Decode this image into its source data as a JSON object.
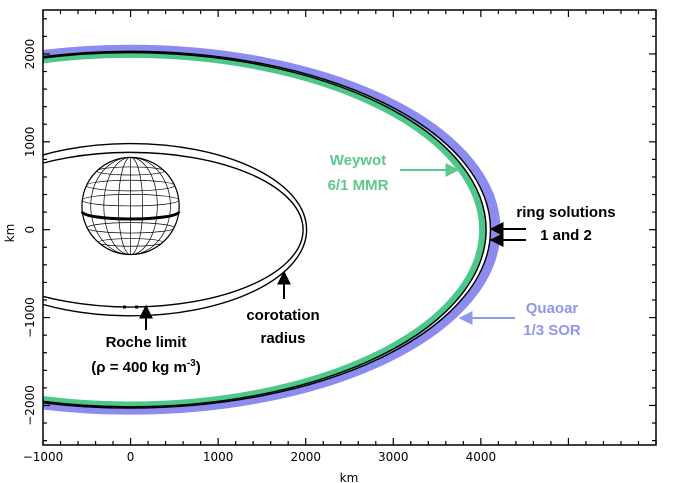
{
  "chart_data": {
    "type": "diagram",
    "xlabel": "km",
    "ylabel": "km",
    "xlim": [
      -1000,
      6000
    ],
    "ylim": [
      -2450,
      2500
    ],
    "x_ticks": [
      -1000,
      0,
      1000,
      2000,
      3000,
      4000
    ],
    "x_tick_labels": [
      "−1000",
      "0",
      "1000",
      "2000",
      "3000",
      "4000"
    ],
    "y_ticks": [
      2000,
      1000,
      0,
      -1000,
      -2000
    ],
    "y_tick_labels": [
      "2000",
      "1000",
      "0",
      "−1000",
      "−2000"
    ],
    "body_radius_km": 555,
    "roche_limit_km": 880,
    "roche_ring": {
      "a_km": 1970,
      "b_km": 880
    },
    "corotation_ring": {
      "a_km": 2010,
      "b_km": 980
    },
    "quaoar_sor": {
      "name": "Quaoar 1/3 SOR",
      "a_km": 4170,
      "b_km": 2050,
      "width_km": 110,
      "color": "#8c8cf0"
    },
    "weywot_mmr": {
      "name": "Weywot 6/1 MMR",
      "a_km": 4020,
      "b_km": 1995,
      "width_km": 80,
      "color": "#4dc88a"
    },
    "ring_solutions_km": [
      4110,
      4060
    ]
  },
  "annotations": {
    "weywot_line1": "Weywot",
    "weywot_line2": "6/1 MMR",
    "ring_line1": "ring solutions",
    "ring_line2": "1 and 2",
    "quaoar_line1": "Quaoar",
    "quaoar_line2": "1/3 SOR",
    "corotation_line1": "corotation",
    "corotation_line2": "radius",
    "roche_line1": "Roche limit",
    "roche_line2_prefix": "(ρ = 400 kg m",
    "roche_line2_sup": "-3",
    "roche_line2_suffix": ")"
  },
  "colors": {
    "weywot_text": "#5ec88c",
    "quaoar_text": "#8f98ea",
    "ink": "#000000"
  }
}
